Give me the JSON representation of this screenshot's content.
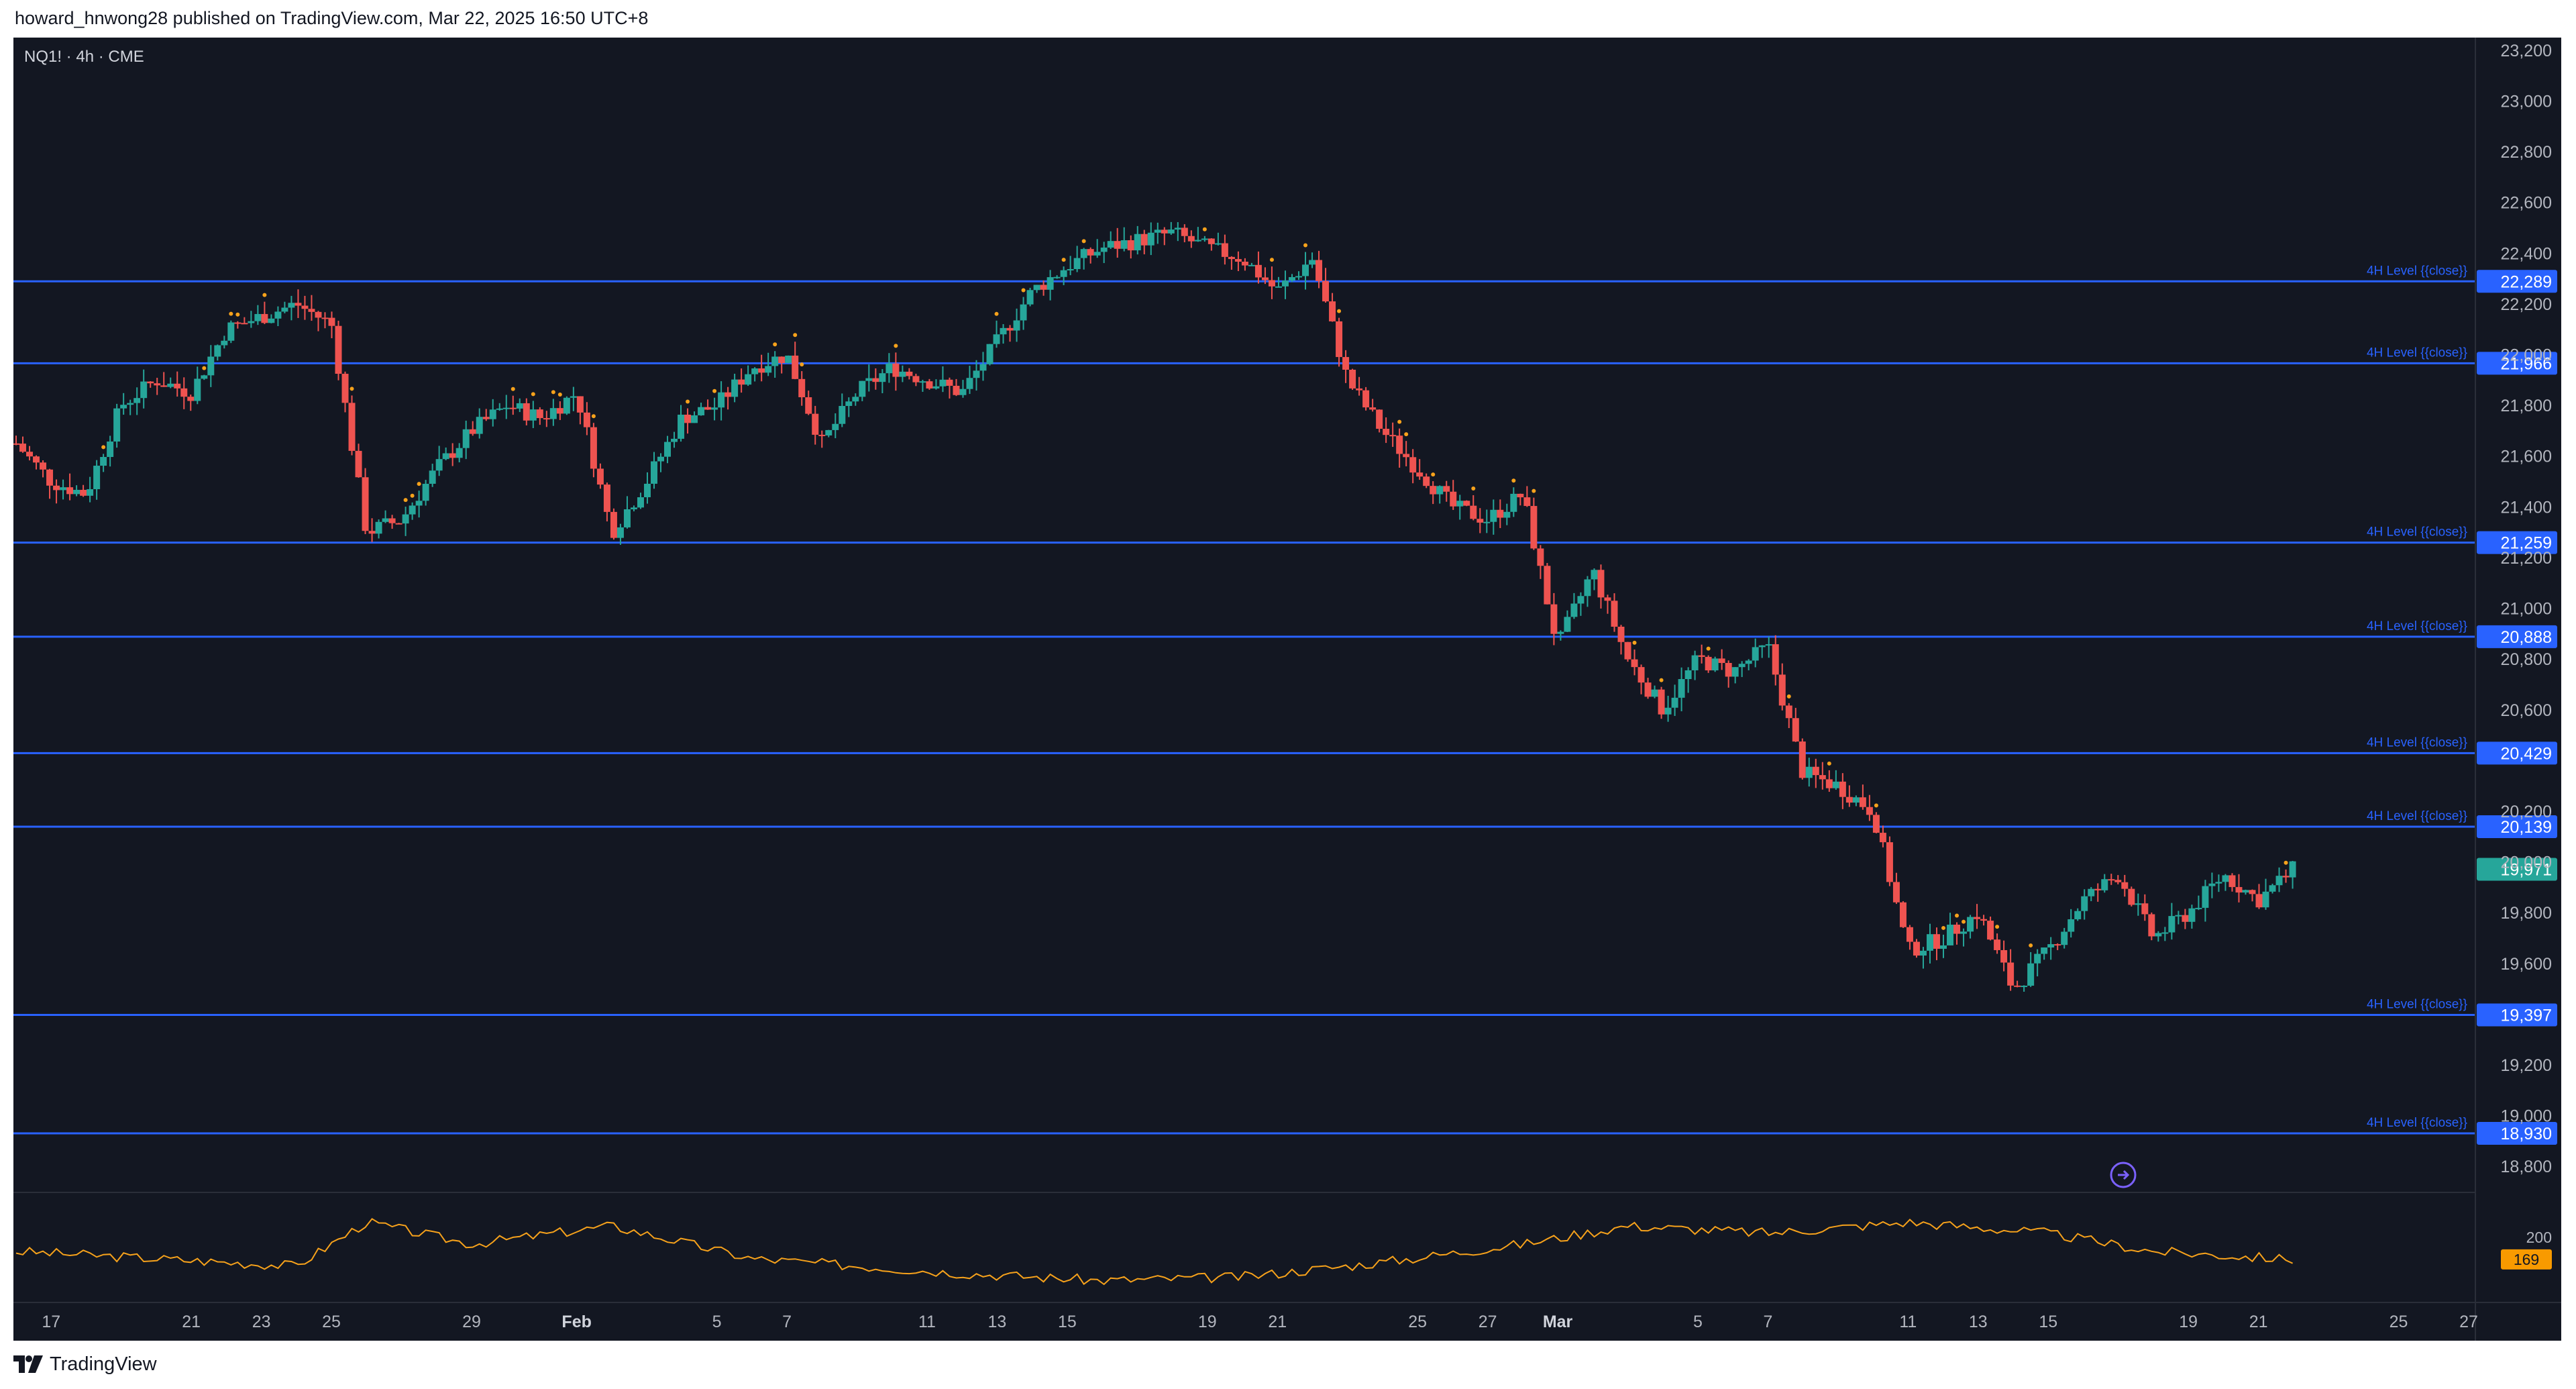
{
  "header": {
    "published_text": "howard_hnwong28 published on TradingView.com, Mar 22, 2025 16:50 UTC+8"
  },
  "footer": {
    "brand": "TradingView"
  },
  "colors": {
    "background": "#131722",
    "up": "#26a69a",
    "down": "#ef5350",
    "level_line": "#2962ff",
    "level_label_bg": "#2962ff",
    "last_price_bg": "#26a69a",
    "indicator_line": "#f7a21b",
    "indicator_badge": "#f89a00",
    "axis_text": "#b2b5be",
    "marker_dot": "#f7a21b"
  },
  "chart_data": {
    "type": "line",
    "symbol_label": "NQ1! · 4h · CME",
    "x_tick_labels": [
      "17",
      "21",
      "23",
      "25",
      "29",
      "Feb",
      "5",
      "7",
      "11",
      "13",
      "15",
      "19",
      "21",
      "25",
      "27",
      "Mar",
      "5",
      "7",
      "11",
      "13",
      "15",
      "19",
      "21",
      "25",
      "27"
    ],
    "y_tick_labels": [
      "23,200",
      "23,000",
      "22,800",
      "22,600",
      "22,400",
      "22,200",
      "22,000",
      "21,800",
      "21,600",
      "21,400",
      "21,200",
      "21,000",
      "20,800",
      "20,600",
      "20,200",
      "20,000",
      "19,800",
      "19,600",
      "19,200",
      "19,000",
      "18,800"
    ],
    "ylim": [
      18700,
      23250
    ],
    "x_range": [
      "Jan 16, 2025",
      "Mar 27, 2025"
    ],
    "levels": [
      {
        "value": 22289,
        "label": "22,289",
        "caption": "4H Level {{close}}"
      },
      {
        "value": 21966,
        "label": "21,966",
        "caption": "4H Level {{close}}"
      },
      {
        "value": 21259,
        "label": "21,259",
        "caption": "4H Level {{close}}"
      },
      {
        "value": 20888,
        "label": "20,888",
        "caption": "4H Level {{close}}"
      },
      {
        "value": 20429,
        "label": "20,429",
        "caption": "4H Level {{close}}"
      },
      {
        "value": 20139,
        "label": "20,139",
        "caption": "4H Level {{close}}"
      },
      {
        "value": 19397,
        "label": "19,397",
        "caption": "4H Level {{close}}"
      },
      {
        "value": 18930,
        "label": "18,930",
        "caption": "4H Level {{close}}"
      }
    ],
    "last_price": {
      "value": 19971,
      "label": "19,971"
    },
    "price_path": [
      [
        "Jan 16",
        21650
      ],
      [
        "Jan 17",
        21500
      ],
      [
        "Jan 18",
        21450
      ],
      [
        "Jan 19",
        21800
      ],
      [
        "Jan 20",
        21900
      ],
      [
        "Jan 21",
        21850
      ],
      [
        "Jan 22",
        22100
      ],
      [
        "Jan 23",
        22150
      ],
      [
        "Jan 24",
        22200
      ],
      [
        "Jan 25",
        22120
      ],
      [
        "Jan 26",
        21300
      ],
      [
        "Jan 27",
        21350
      ],
      [
        "Jan 28",
        21550
      ],
      [
        "Jan 29",
        21700
      ],
      [
        "Jan 30",
        21800
      ],
      [
        "Jan 31",
        21750
      ],
      [
        "Feb 1",
        21850
      ],
      [
        "Feb 2",
        21300
      ],
      [
        "Feb 3",
        21500
      ],
      [
        "Feb 4",
        21750
      ],
      [
        "Feb 5",
        21800
      ],
      [
        "Feb 6",
        21950
      ],
      [
        "Feb 7",
        22000
      ],
      [
        "Feb 8",
        21650
      ],
      [
        "Feb 9",
        21850
      ],
      [
        "Feb 10",
        21950
      ],
      [
        "Feb 11",
        21900
      ],
      [
        "Feb 12",
        21850
      ],
      [
        "Feb 13",
        22050
      ],
      [
        "Feb 14",
        22250
      ],
      [
        "Feb 15",
        22350
      ],
      [
        "Feb 16",
        22420
      ],
      [
        "Feb 17",
        22450
      ],
      [
        "Feb 18",
        22480
      ],
      [
        "Feb 19",
        22420
      ],
      [
        "Feb 20",
        22380
      ],
      [
        "Feb 21",
        22250
      ],
      [
        "Feb 22",
        22380
      ],
      [
        "Feb 23",
        21900
      ],
      [
        "Feb 24",
        21700
      ],
      [
        "Feb 25",
        21550
      ],
      [
        "Feb 26",
        21400
      ],
      [
        "Feb 27",
        21350
      ],
      [
        "Feb 28",
        21450
      ],
      [
        "Mar 1",
        20850
      ],
      [
        "Mar 2",
        21150
      ],
      [
        "Mar 3",
        20800
      ],
      [
        "Mar 4",
        20600
      ],
      [
        "Mar 5",
        20800
      ],
      [
        "Mar 6",
        20750
      ],
      [
        "Mar 7",
        20850
      ],
      [
        "Mar 8",
        20350
      ],
      [
        "Mar 9",
        20300
      ],
      [
        "Mar 10",
        20200
      ],
      [
        "Mar 11",
        19650
      ],
      [
        "Mar 12",
        19700
      ],
      [
        "Mar 13",
        19800
      ],
      [
        "Mar 14",
        19500
      ],
      [
        "Mar 15",
        19650
      ],
      [
        "Mar 16",
        19850
      ],
      [
        "Mar 17",
        19950
      ],
      [
        "Mar 18",
        19700
      ],
      [
        "Mar 19",
        19800
      ],
      [
        "Mar 20",
        19950
      ],
      [
        "Mar 21",
        19850
      ],
      [
        "Mar 22",
        19971
      ]
    ],
    "indicator": {
      "badge_value": "169",
      "tick_label": "200",
      "path": [
        [
          "Jan 16",
          180
        ],
        [
          "Jan 20",
          170
        ],
        [
          "Jan 24",
          160
        ],
        [
          "Jan 26",
          220
        ],
        [
          "Jan 29",
          190
        ],
        [
          "Feb 2",
          215
        ],
        [
          "Feb 6",
          170
        ],
        [
          "Feb 12",
          150
        ],
        [
          "Feb 16",
          140
        ],
        [
          "Feb 20",
          145
        ],
        [
          "Feb 24",
          165
        ],
        [
          "Feb 28",
          190
        ],
        [
          "Mar 3",
          215
        ],
        [
          "Mar 7",
          205
        ],
        [
          "Mar 11",
          220
        ],
        [
          "Mar 15",
          205
        ],
        [
          "Mar 18",
          180
        ],
        [
          "Mar 22",
          169
        ]
      ]
    },
    "grid": false
  }
}
